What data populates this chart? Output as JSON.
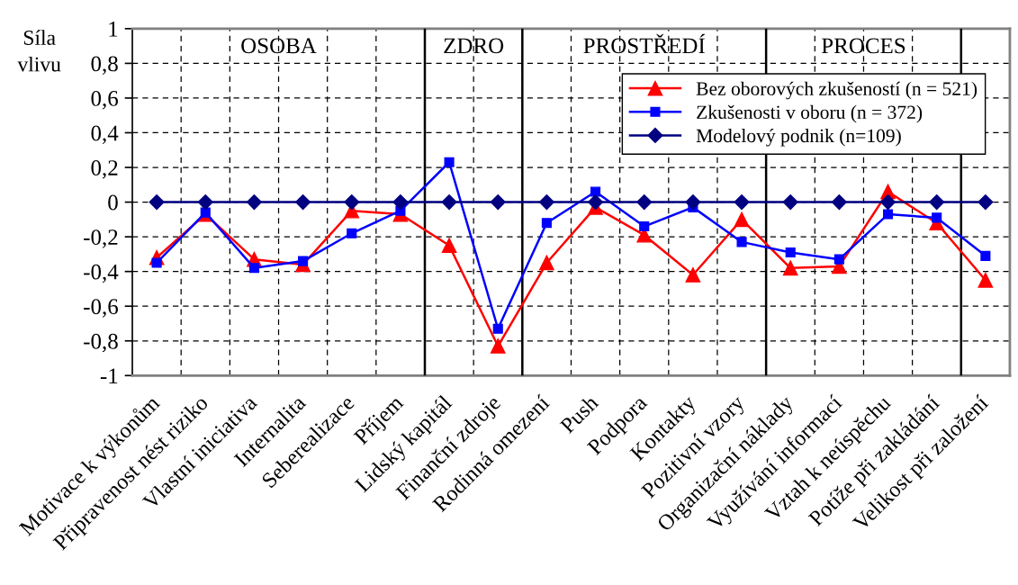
{
  "chart_data": {
    "type": "line",
    "ylabel": "Síla vlivu",
    "categories": [
      "Motivace k výkonům",
      "Připravenost nést riziko",
      "Vlastní iniciativa",
      "Internalita",
      "Seberealizace",
      "Příjem",
      "Lidský kapitál",
      "Finanční zdroje",
      "Rodinná omezení",
      "Push",
      "Podpora",
      "Kontakty",
      "Pozitivní vzory",
      "Organizační náklady",
      "Využívání informací",
      "Vztah k neúspěchu",
      "Potíže při zakládání",
      "Velikost při založení"
    ],
    "ylim": [
      -1,
      1
    ],
    "yticks": [
      -1,
      {
        "value": -0.8,
        "label": "-0,8"
      },
      {
        "value": -0.6,
        "label": "-0,6"
      },
      {
        "value": -0.4,
        "label": "-0,4"
      },
      {
        "value": -0.2,
        "label": "-0,2"
      },
      0,
      {
        "value": 0.2,
        "label": "0,2"
      },
      {
        "value": 0.4,
        "label": "0,4"
      },
      {
        "value": 0.6,
        "label": "0,6"
      },
      {
        "value": 0.8,
        "label": "0,8"
      },
      1
    ],
    "grid": true,
    "legend": "top right",
    "line_style": "solid",
    "annotations": [
      "OSOBA",
      "ZDRO",
      "PROSTŘEDÍ",
      "PROCES"
    ],
    "series": [
      {
        "name": "Bez oborových zkušeností (n = 521)",
        "color": "#ff0000",
        "marker": "triangle",
        "values": [
          -0.32,
          -0.07,
          -0.33,
          -0.36,
          -0.05,
          -0.07,
          -0.25,
          -0.83,
          -0.35,
          -0.03,
          -0.19,
          -0.42,
          -0.1,
          -0.38,
          -0.37,
          0.06,
          -0.12,
          -0.45
        ]
      },
      {
        "name": "Zkušenosti v oboru (n = 372)",
        "color": "#0000ff",
        "marker": "square",
        "values": [
          -0.35,
          -0.06,
          -0.38,
          -0.34,
          -0.18,
          -0.05,
          0.23,
          -0.73,
          -0.12,
          0.06,
          -0.14,
          -0.03,
          -0.23,
          -0.29,
          -0.33,
          -0.07,
          -0.09,
          -0.31
        ]
      },
      {
        "name": "Modelový podnik (n=109)",
        "color": "#000080",
        "marker": "diamond",
        "values": [
          0,
          0,
          0,
          0,
          0,
          0,
          0,
          0,
          0,
          0,
          0,
          0,
          0,
          0,
          0,
          0,
          0,
          0
        ]
      }
    ]
  }
}
